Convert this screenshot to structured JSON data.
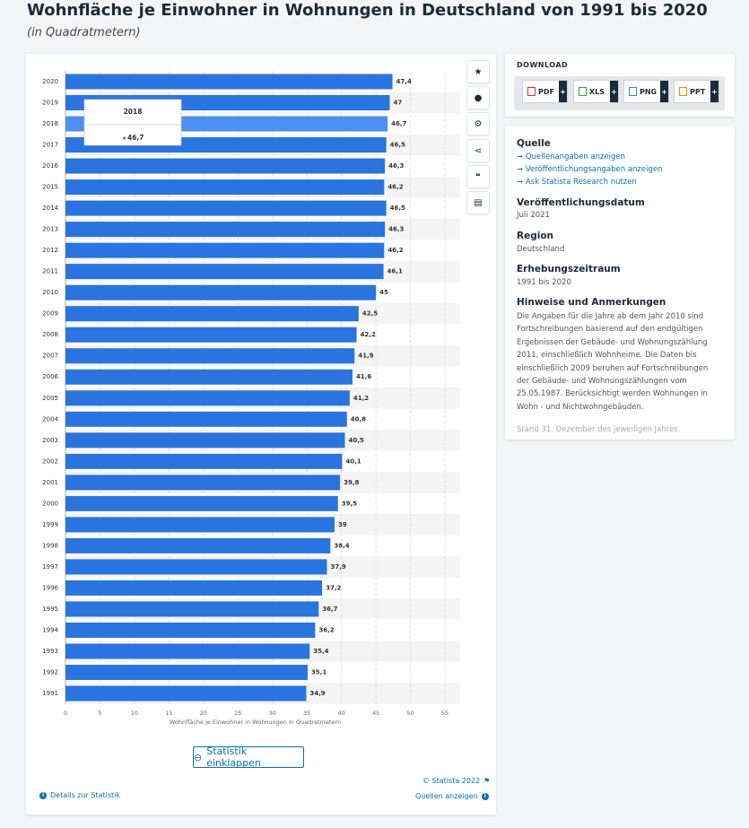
{
  "header": {
    "title": "Wohnfläche je Einwohner in Wohnungen in Deutschland von 1991 bis 2020",
    "subtitle": "(in Quadratmetern)"
  },
  "chart_data": {
    "type": "bar",
    "orientation": "horizontal",
    "color": "#2a74e0",
    "highlight_color": "#4d8ff0",
    "x_label": "Wohnfläche je Einwohner in Wohnungen in Quadratmetern",
    "categories": [
      "2020",
      "2019",
      "2018",
      "2017",
      "2016",
      "2015",
      "2014",
      "2013",
      "2012",
      "2011",
      "2010",
      "2009",
      "2008",
      "2007",
      "2006",
      "2005",
      "2004",
      "2003",
      "2002",
      "2001",
      "2000",
      "1999",
      "1998",
      "1997",
      "1996",
      "1995",
      "1994",
      "1993",
      "1992",
      "1991"
    ],
    "values": [
      47.4,
      47,
      46.7,
      46.5,
      46.3,
      46.2,
      46.5,
      46.3,
      46.2,
      46.1,
      45,
      42.5,
      42.2,
      41.9,
      41.6,
      41.2,
      40.8,
      40.5,
      40.1,
      39.8,
      39.5,
      39,
      38.4,
      37.9,
      37.2,
      36.7,
      36.2,
      35.4,
      35.1,
      34.9
    ],
    "value_labels": [
      "47,4",
      "47",
      "46,7",
      "46,5",
      "46,3",
      "46,2",
      "46,5",
      "46,3",
      "46,2",
      "46,1",
      "45",
      "42,5",
      "42,2",
      "41,9",
      "41,6",
      "41,2",
      "40,8",
      "40,5",
      "40,1",
      "39,8",
      "39,5",
      "39",
      "38,4",
      "37,9",
      "37,2",
      "36,7",
      "36,2",
      "35,4",
      "35,1",
      "34,9"
    ],
    "xlim": [
      0,
      55
    ],
    "xticks": [
      0,
      5,
      10,
      15,
      20,
      25,
      30,
      35,
      40,
      45,
      50,
      55
    ],
    "grid": true,
    "highlight_index": 2
  },
  "chart_footer": {
    "collapse_button": "Statistik einklappen",
    "copyright": "© Statista 2022",
    "details": "Details zur Statistik",
    "sources": "Quellen anzeigen"
  },
  "download": {
    "label": "DOWNLOAD",
    "buttons": [
      "PDF",
      "XLS",
      "PNG",
      "PPT"
    ]
  },
  "info": {
    "source_heading": "Quelle",
    "links": [
      "Quellenangaben anzeigen",
      "Veröffentlichungsangaben anzeigen",
      "Ask Statista Research nutzen"
    ],
    "date_heading": "Veröffentlichungsdatum",
    "date": "Juli 2021",
    "region_heading": "Region",
    "region": "Deutschland",
    "period_heading": "Erhebungszeitraum",
    "period": "1991 bis 2020",
    "notes_heading": "Hinweise und Anmerkungen",
    "notes": [
      "Die Angaben für die Jahre ab dem Jahr 2010 sind",
      "Fortschreibungen basierend auf den endgültigen",
      "Ergebnissen der Gebäude- und Wohnungszählung",
      "2011, einschließlich Wohnheime. Die Daten bis",
      "einschließlich 2009 beruhen auf Fortschreibungen",
      "der Gebäude- und Wohnungszählungen vom",
      "25.05.1987. Berücksichtigt werden Wohnungen in",
      "Wohn - und Nichtwohngebäuden."
    ],
    "notes_more": "Stand 31. Dezember des jeweiligen Jahres."
  }
}
